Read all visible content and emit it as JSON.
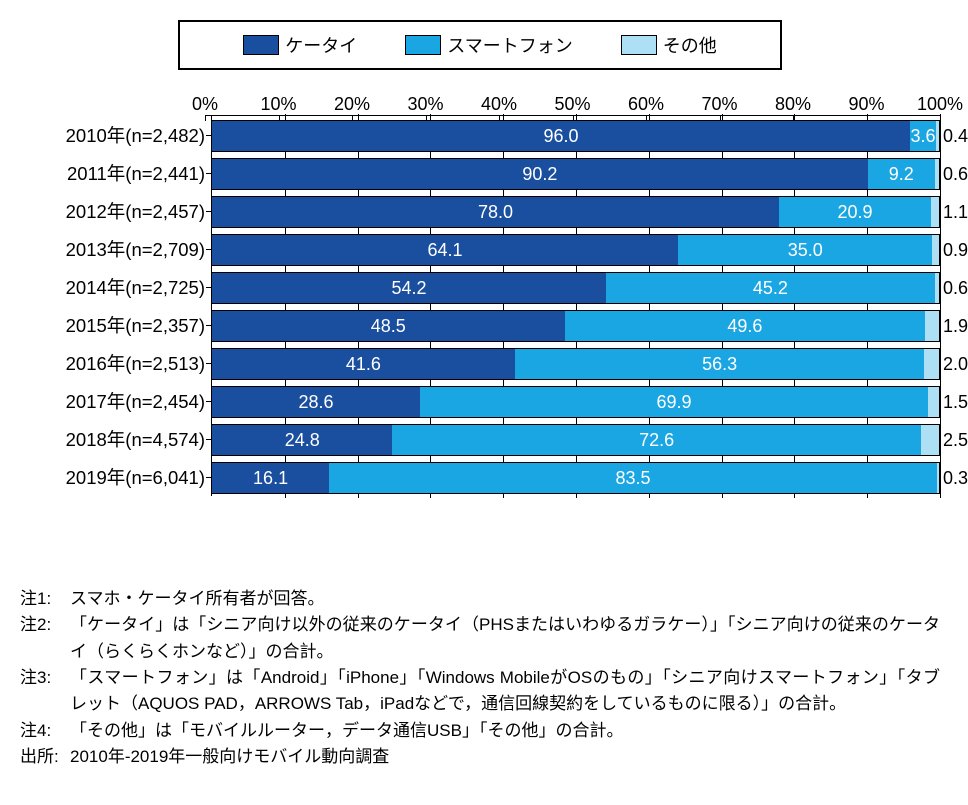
{
  "chart": {
    "type": "stacked-bar-horizontal",
    "legend": [
      {
        "label": "ケータイ",
        "color": "#1a4fa0"
      },
      {
        "label": "スマートフォン",
        "color": "#1aa6e3"
      },
      {
        "label": "その他",
        "color": "#aee0f5"
      }
    ],
    "x_ticks": [
      "0%",
      "10%",
      "20%",
      "30%",
      "40%",
      "50%",
      "60%",
      "70%",
      "80%",
      "90%",
      "100%"
    ],
    "x_max": 100,
    "series_colors": {
      "keitai": "#1a4fa0",
      "smartphone": "#1aa6e3",
      "other": "#aee0f5"
    },
    "label_color_on_dark": "#ffffff",
    "label_color_on_light": "#000000",
    "rows": [
      {
        "category": "2010年(n=2,482)",
        "keitai": 96.0,
        "smartphone": 3.6,
        "other": 0.4,
        "labels": {
          "keitai": "96.0",
          "smartphone": "3.6",
          "other": "0.4"
        },
        "small_sp": true,
        "other_outside": true
      },
      {
        "category": "2011年(n=2,441)",
        "keitai": 90.2,
        "smartphone": 9.2,
        "other": 0.6,
        "labels": {
          "keitai": "90.2",
          "smartphone": "9.2",
          "other": "0.6"
        },
        "other_outside": true
      },
      {
        "category": "2012年(n=2,457)",
        "keitai": 78.0,
        "smartphone": 20.9,
        "other": 1.1,
        "labels": {
          "keitai": "78.0",
          "smartphone": "20.9",
          "other": "1.1"
        },
        "other_outside": true
      },
      {
        "category": "2013年(n=2,709)",
        "keitai": 64.1,
        "smartphone": 35.0,
        "other": 0.9,
        "labels": {
          "keitai": "64.1",
          "smartphone": "35.0",
          "other": "0.9"
        },
        "other_outside": true
      },
      {
        "category": "2014年(n=2,725)",
        "keitai": 54.2,
        "smartphone": 45.2,
        "other": 0.6,
        "labels": {
          "keitai": "54.2",
          "smartphone": "45.2",
          "other": "0.6"
        },
        "other_outside": true
      },
      {
        "category": "2015年(n=2,357)",
        "keitai": 48.5,
        "smartphone": 49.6,
        "other": 1.9,
        "labels": {
          "keitai": "48.5",
          "smartphone": "49.6",
          "other": "1.9"
        },
        "other_outside": true
      },
      {
        "category": "2016年(n=2,513)",
        "keitai": 41.6,
        "smartphone": 56.3,
        "other": 2.0,
        "labels": {
          "keitai": "41.6",
          "smartphone": "56.3",
          "other": "2.0"
        },
        "other_outside": true
      },
      {
        "category": "2017年(n=2,454)",
        "keitai": 28.6,
        "smartphone": 69.9,
        "other": 1.5,
        "labels": {
          "keitai": "28.6",
          "smartphone": "69.9",
          "other": "1.5"
        },
        "other_outside": true
      },
      {
        "category": "2018年(n=4,574)",
        "keitai": 24.8,
        "smartphone": 72.6,
        "other": 2.5,
        "labels": {
          "keitai": "24.8",
          "smartphone": "72.6",
          "other": "2.5"
        },
        "other_outside": true
      },
      {
        "category": "2019年(n=6,041)",
        "keitai": 16.1,
        "smartphone": 83.5,
        "other": 0.3,
        "labels": {
          "keitai": "16.1",
          "smartphone": "83.5",
          "other": "0.3"
        },
        "other_outside": true
      }
    ]
  },
  "notes": [
    {
      "head": "注1:",
      "body": "スマホ・ケータイ所有者が回答。"
    },
    {
      "head": "注2:",
      "body": "「ケータイ」は「シニア向け以外の従来のケータイ（PHSまたはいわゆるガラケー）」「シニア向けの従来のケータイ（らくらくホンなど）」の合計。"
    },
    {
      "head": "注3:",
      "body": "「スマートフォン」は「Android」「iPhone」「Windows MobileがOSのもの」「シニア向けスマートフォン」「タブレット（AQUOS PAD，ARROWS Tab，iPadなどで，通信回線契約をしているものに限る）」の合計。"
    },
    {
      "head": "注4:",
      "body": "「その他」は「モバイルルーター，データ通信USB」「その他」の合計。"
    },
    {
      "head": "出所:",
      "body": "2010年-2019年一般向けモバイル動向調査"
    }
  ]
}
